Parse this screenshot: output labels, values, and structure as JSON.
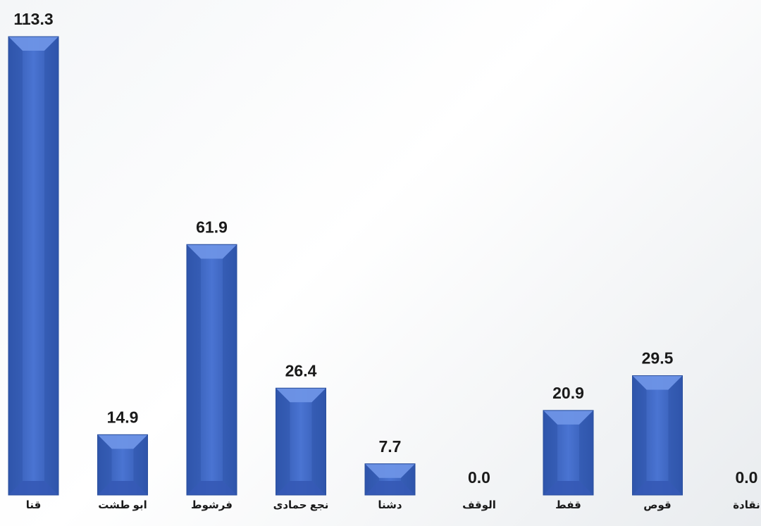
{
  "chart_data": {
    "type": "bar",
    "categories": [
      "قنا",
      "ابو طشت",
      "فرشوط",
      "نجع حمادى",
      "دشنا",
      "الوقف",
      "قفط",
      "قوص",
      "نقادة"
    ],
    "values": [
      113.3,
      14.9,
      61.9,
      26.4,
      7.7,
      0.0,
      20.9,
      29.5,
      0.0
    ],
    "value_labels": [
      "113.3",
      "14.9",
      "61.9",
      "26.4",
      "7.7",
      "0.0",
      "20.9",
      "29.5",
      "0.0"
    ],
    "title": "",
    "xlabel": "",
    "ylabel": "",
    "ylim": [
      0,
      113.3
    ],
    "grid": false,
    "legend": "none",
    "colors": {
      "bar_side": "#3a65c4",
      "bar_light": "#6e93e6",
      "bar_dark": "#2f55ab",
      "bar_top": "#5b82dc",
      "bar_bottom": "#3559b5",
      "bar_stroke": "#2a4f9e",
      "text": "#1a1a1a"
    }
  }
}
